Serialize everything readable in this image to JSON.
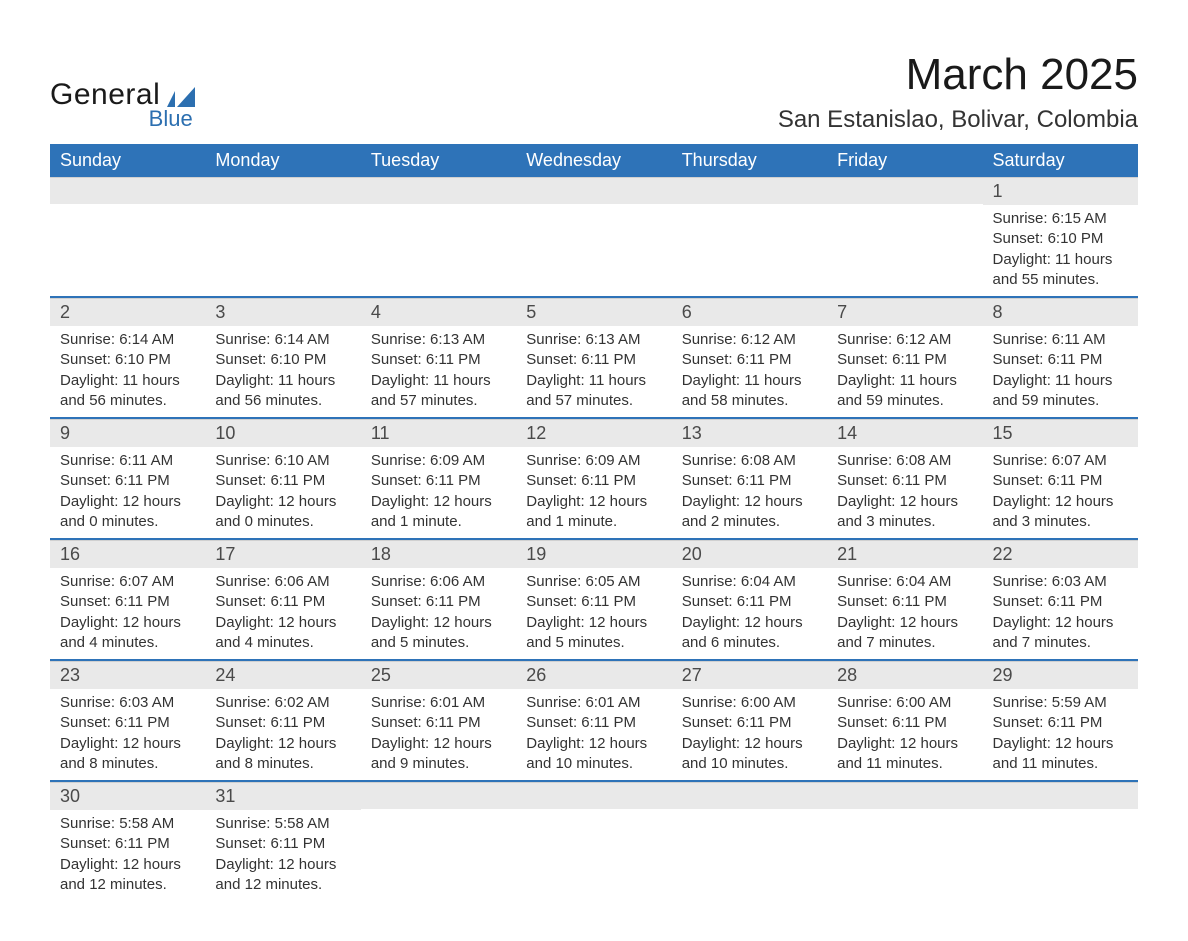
{
  "brand": {
    "name_main": "General",
    "name_sub": "Blue",
    "main_color": "#1a1a1a",
    "sub_color": "#2c6fb0"
  },
  "title": {
    "month_year": "March 2025",
    "location": "San Estanislao, Bolivar, Colombia"
  },
  "colors": {
    "header_bg": "#2e73b8",
    "header_text": "#ffffff",
    "daynum_bg": "#e9e9e9",
    "daynum_text": "#4a4a4a",
    "row_divider": "#2e73b8",
    "body_text": "#333333",
    "page_bg": "#ffffff"
  },
  "typography": {
    "month_title_pt": 33,
    "location_pt": 18,
    "weekday_pt": 14,
    "daynum_pt": 14,
    "body_pt": 11
  },
  "weekdays": [
    "Sunday",
    "Monday",
    "Tuesday",
    "Wednesday",
    "Thursday",
    "Friday",
    "Saturday"
  ],
  "weeks": [
    [
      null,
      null,
      null,
      null,
      null,
      null,
      {
        "n": "1",
        "sunrise": "Sunrise: 6:15 AM",
        "sunset": "Sunset: 6:10 PM",
        "daylight1": "Daylight: 11 hours",
        "daylight2": "and 55 minutes."
      }
    ],
    [
      {
        "n": "2",
        "sunrise": "Sunrise: 6:14 AM",
        "sunset": "Sunset: 6:10 PM",
        "daylight1": "Daylight: 11 hours",
        "daylight2": "and 56 minutes."
      },
      {
        "n": "3",
        "sunrise": "Sunrise: 6:14 AM",
        "sunset": "Sunset: 6:10 PM",
        "daylight1": "Daylight: 11 hours",
        "daylight2": "and 56 minutes."
      },
      {
        "n": "4",
        "sunrise": "Sunrise: 6:13 AM",
        "sunset": "Sunset: 6:11 PM",
        "daylight1": "Daylight: 11 hours",
        "daylight2": "and 57 minutes."
      },
      {
        "n": "5",
        "sunrise": "Sunrise: 6:13 AM",
        "sunset": "Sunset: 6:11 PM",
        "daylight1": "Daylight: 11 hours",
        "daylight2": "and 57 minutes."
      },
      {
        "n": "6",
        "sunrise": "Sunrise: 6:12 AM",
        "sunset": "Sunset: 6:11 PM",
        "daylight1": "Daylight: 11 hours",
        "daylight2": "and 58 minutes."
      },
      {
        "n": "7",
        "sunrise": "Sunrise: 6:12 AM",
        "sunset": "Sunset: 6:11 PM",
        "daylight1": "Daylight: 11 hours",
        "daylight2": "and 59 minutes."
      },
      {
        "n": "8",
        "sunrise": "Sunrise: 6:11 AM",
        "sunset": "Sunset: 6:11 PM",
        "daylight1": "Daylight: 11 hours",
        "daylight2": "and 59 minutes."
      }
    ],
    [
      {
        "n": "9",
        "sunrise": "Sunrise: 6:11 AM",
        "sunset": "Sunset: 6:11 PM",
        "daylight1": "Daylight: 12 hours",
        "daylight2": "and 0 minutes."
      },
      {
        "n": "10",
        "sunrise": "Sunrise: 6:10 AM",
        "sunset": "Sunset: 6:11 PM",
        "daylight1": "Daylight: 12 hours",
        "daylight2": "and 0 minutes."
      },
      {
        "n": "11",
        "sunrise": "Sunrise: 6:09 AM",
        "sunset": "Sunset: 6:11 PM",
        "daylight1": "Daylight: 12 hours",
        "daylight2": "and 1 minute."
      },
      {
        "n": "12",
        "sunrise": "Sunrise: 6:09 AM",
        "sunset": "Sunset: 6:11 PM",
        "daylight1": "Daylight: 12 hours",
        "daylight2": "and 1 minute."
      },
      {
        "n": "13",
        "sunrise": "Sunrise: 6:08 AM",
        "sunset": "Sunset: 6:11 PM",
        "daylight1": "Daylight: 12 hours",
        "daylight2": "and 2 minutes."
      },
      {
        "n": "14",
        "sunrise": "Sunrise: 6:08 AM",
        "sunset": "Sunset: 6:11 PM",
        "daylight1": "Daylight: 12 hours",
        "daylight2": "and 3 minutes."
      },
      {
        "n": "15",
        "sunrise": "Sunrise: 6:07 AM",
        "sunset": "Sunset: 6:11 PM",
        "daylight1": "Daylight: 12 hours",
        "daylight2": "and 3 minutes."
      }
    ],
    [
      {
        "n": "16",
        "sunrise": "Sunrise: 6:07 AM",
        "sunset": "Sunset: 6:11 PM",
        "daylight1": "Daylight: 12 hours",
        "daylight2": "and 4 minutes."
      },
      {
        "n": "17",
        "sunrise": "Sunrise: 6:06 AM",
        "sunset": "Sunset: 6:11 PM",
        "daylight1": "Daylight: 12 hours",
        "daylight2": "and 4 minutes."
      },
      {
        "n": "18",
        "sunrise": "Sunrise: 6:06 AM",
        "sunset": "Sunset: 6:11 PM",
        "daylight1": "Daylight: 12 hours",
        "daylight2": "and 5 minutes."
      },
      {
        "n": "19",
        "sunrise": "Sunrise: 6:05 AM",
        "sunset": "Sunset: 6:11 PM",
        "daylight1": "Daylight: 12 hours",
        "daylight2": "and 5 minutes."
      },
      {
        "n": "20",
        "sunrise": "Sunrise: 6:04 AM",
        "sunset": "Sunset: 6:11 PM",
        "daylight1": "Daylight: 12 hours",
        "daylight2": "and 6 minutes."
      },
      {
        "n": "21",
        "sunrise": "Sunrise: 6:04 AM",
        "sunset": "Sunset: 6:11 PM",
        "daylight1": "Daylight: 12 hours",
        "daylight2": "and 7 minutes."
      },
      {
        "n": "22",
        "sunrise": "Sunrise: 6:03 AM",
        "sunset": "Sunset: 6:11 PM",
        "daylight1": "Daylight: 12 hours",
        "daylight2": "and 7 minutes."
      }
    ],
    [
      {
        "n": "23",
        "sunrise": "Sunrise: 6:03 AM",
        "sunset": "Sunset: 6:11 PM",
        "daylight1": "Daylight: 12 hours",
        "daylight2": "and 8 minutes."
      },
      {
        "n": "24",
        "sunrise": "Sunrise: 6:02 AM",
        "sunset": "Sunset: 6:11 PM",
        "daylight1": "Daylight: 12 hours",
        "daylight2": "and 8 minutes."
      },
      {
        "n": "25",
        "sunrise": "Sunrise: 6:01 AM",
        "sunset": "Sunset: 6:11 PM",
        "daylight1": "Daylight: 12 hours",
        "daylight2": "and 9 minutes."
      },
      {
        "n": "26",
        "sunrise": "Sunrise: 6:01 AM",
        "sunset": "Sunset: 6:11 PM",
        "daylight1": "Daylight: 12 hours",
        "daylight2": "and 10 minutes."
      },
      {
        "n": "27",
        "sunrise": "Sunrise: 6:00 AM",
        "sunset": "Sunset: 6:11 PM",
        "daylight1": "Daylight: 12 hours",
        "daylight2": "and 10 minutes."
      },
      {
        "n": "28",
        "sunrise": "Sunrise: 6:00 AM",
        "sunset": "Sunset: 6:11 PM",
        "daylight1": "Daylight: 12 hours",
        "daylight2": "and 11 minutes."
      },
      {
        "n": "29",
        "sunrise": "Sunrise: 5:59 AM",
        "sunset": "Sunset: 6:11 PM",
        "daylight1": "Daylight: 12 hours",
        "daylight2": "and 11 minutes."
      }
    ],
    [
      {
        "n": "30",
        "sunrise": "Sunrise: 5:58 AM",
        "sunset": "Sunset: 6:11 PM",
        "daylight1": "Daylight: 12 hours",
        "daylight2": "and 12 minutes."
      },
      {
        "n": "31",
        "sunrise": "Sunrise: 5:58 AM",
        "sunset": "Sunset: 6:11 PM",
        "daylight1": "Daylight: 12 hours",
        "daylight2": "and 12 minutes."
      },
      null,
      null,
      null,
      null,
      null
    ]
  ]
}
